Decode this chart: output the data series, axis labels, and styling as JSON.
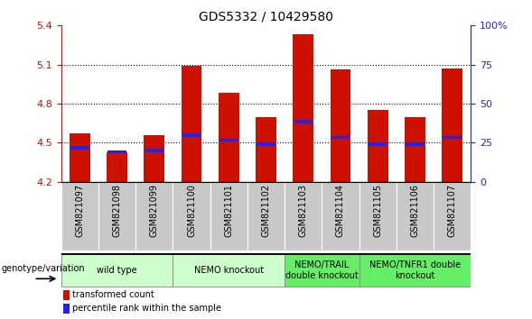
{
  "title": "GDS5332 / 10429580",
  "samples": [
    "GSM821097",
    "GSM821098",
    "GSM821099",
    "GSM821100",
    "GSM821101",
    "GSM821102",
    "GSM821103",
    "GSM821104",
    "GSM821105",
    "GSM821106",
    "GSM821107"
  ],
  "red_values": [
    4.57,
    4.43,
    4.56,
    5.09,
    4.88,
    4.7,
    5.33,
    5.06,
    4.75,
    4.7,
    5.07
  ],
  "blue_values": [
    4.46,
    4.43,
    4.44,
    4.56,
    4.52,
    4.49,
    4.66,
    4.54,
    4.49,
    4.49,
    4.54
  ],
  "ymin": 4.2,
  "ymax": 5.4,
  "yticks_left": [
    4.2,
    4.5,
    4.8,
    5.1,
    5.4
  ],
  "right_yticks_pct": [
    0,
    25,
    50,
    75,
    100
  ],
  "right_yticklabels": [
    "0",
    "25",
    "50",
    "75",
    "100%"
  ],
  "group_boundaries": [
    {
      "start": 0,
      "end": 2,
      "label": "wild type",
      "color": "#ccffcc"
    },
    {
      "start": 3,
      "end": 5,
      "label": "NEMO knockout",
      "color": "#ccffcc"
    },
    {
      "start": 6,
      "end": 7,
      "label": "NEMO/TRAIL\ndouble knockout",
      "color": "#66ee66"
    },
    {
      "start": 8,
      "end": 10,
      "label": "NEMO/TNFR1 double\nknockout",
      "color": "#66ee66"
    }
  ],
  "bar_width": 0.55,
  "red_color": "#cc1100",
  "blue_color": "#2222ee",
  "bg_color": "#ffffff",
  "bar_bg_color": "#c8c8c8",
  "legend_label_red": "transformed count",
  "legend_label_blue": "percentile rank within the sample",
  "genotype_label": "genotype/variation",
  "left_axis_color": "#cc1100",
  "right_axis_color": "#2222ee",
  "title_fontsize": 10,
  "axis_fontsize": 8,
  "tick_label_fontsize": 7,
  "group_label_fontsize": 7,
  "legend_fontsize": 7
}
